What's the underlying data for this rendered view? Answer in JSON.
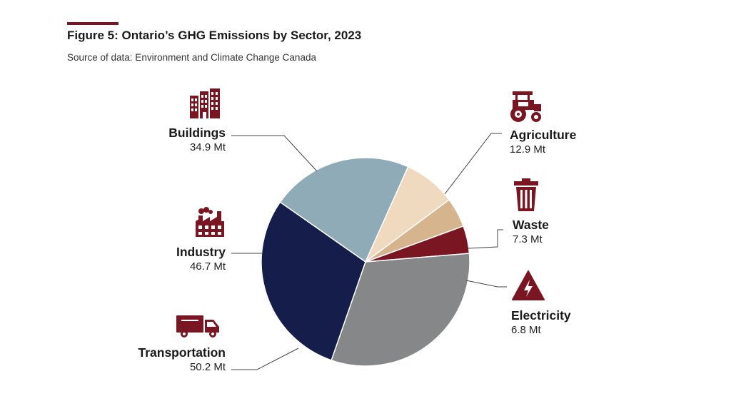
{
  "title": "Figure 5:  Ontario’s GHG Emissions by Sector, 2023",
  "subtitle": "Source of data: Environment and Climate Change Canada",
  "colors": {
    "accent": "#7a1522",
    "buildings": "#8fabb7",
    "agriculture": "#efd9bf",
    "waste": "#d5b48e",
    "electricity": "#7a1522",
    "transportation": "#858789",
    "industry": "#151d4a"
  },
  "chart_data": {
    "type": "pie",
    "unit": "Mt",
    "slices": [
      {
        "key": "buildings",
        "label": "Buildings",
        "value": 34.9,
        "value_label": "34.9 Mt",
        "color": "#8fabb7",
        "icon": "building-icon"
      },
      {
        "key": "agriculture",
        "label": "Agriculture",
        "value": 12.9,
        "value_label": "12.9 Mt",
        "color": "#efd9bf",
        "icon": "tractor-icon"
      },
      {
        "key": "waste",
        "label": "Waste",
        "value": 7.3,
        "value_label": "7.3 Mt",
        "color": "#d5b48e",
        "icon": "trash-can-icon"
      },
      {
        "key": "electricity",
        "label": "Electricity",
        "value": 6.8,
        "value_label": "6.8 Mt",
        "color": "#7a1522",
        "icon": "high-voltage-icon"
      },
      {
        "key": "transportation",
        "label": "Transportation",
        "value": 50.2,
        "value_label": "50.2 Mt",
        "color": "#858789",
        "icon": "truck-icon"
      },
      {
        "key": "industry",
        "label": "Industry",
        "value": 46.7,
        "value_label": "46.7 Mt",
        "color": "#151d4a",
        "icon": "factory-icon"
      }
    ]
  }
}
